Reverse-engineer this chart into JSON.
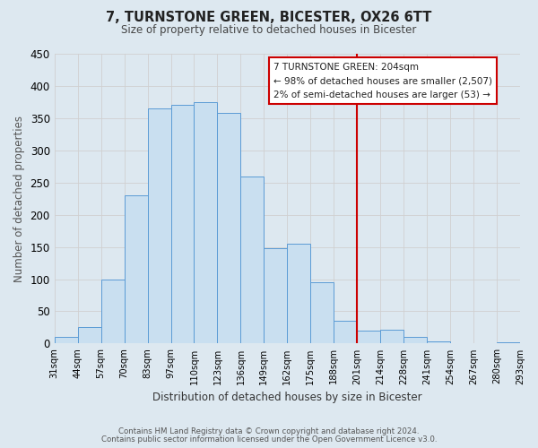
{
  "title": "7, TURNSTONE GREEN, BICESTER, OX26 6TT",
  "subtitle": "Size of property relative to detached houses in Bicester",
  "xlabel": "Distribution of detached houses by size in Bicester",
  "ylabel": "Number of detached properties",
  "bin_labels": [
    "31sqm",
    "44sqm",
    "57sqm",
    "70sqm",
    "83sqm",
    "97sqm",
    "110sqm",
    "123sqm",
    "136sqm",
    "149sqm",
    "162sqm",
    "175sqm",
    "188sqm",
    "201sqm",
    "214sqm",
    "228sqm",
    "241sqm",
    "254sqm",
    "267sqm",
    "280sqm",
    "293sqm"
  ],
  "bar_values": [
    10,
    25,
    100,
    230,
    365,
    370,
    375,
    358,
    260,
    148,
    155,
    95,
    35,
    20,
    22,
    10,
    3,
    1,
    0,
    2
  ],
  "bar_color": "#c9dff0",
  "bar_edge_color": "#5b9bd5",
  "ylim": [
    0,
    450
  ],
  "yticks": [
    0,
    50,
    100,
    150,
    200,
    250,
    300,
    350,
    400,
    450
  ],
  "grid_color": "#d0d0d0",
  "vline_color": "#cc0000",
  "annotation_title": "7 TURNSTONE GREEN: 204sqm",
  "annotation_line1": "← 98% of detached houses are smaller (2,507)",
  "annotation_line2": "2% of semi-detached houses are larger (53) →",
  "annotation_box_edge": "#cc0000",
  "footer_line1": "Contains HM Land Registry data © Crown copyright and database right 2024.",
  "footer_line2": "Contains public sector information licensed under the Open Government Licence v3.0.",
  "background_color": "#dde8f0",
  "plot_bg_color": "#dde8f0"
}
